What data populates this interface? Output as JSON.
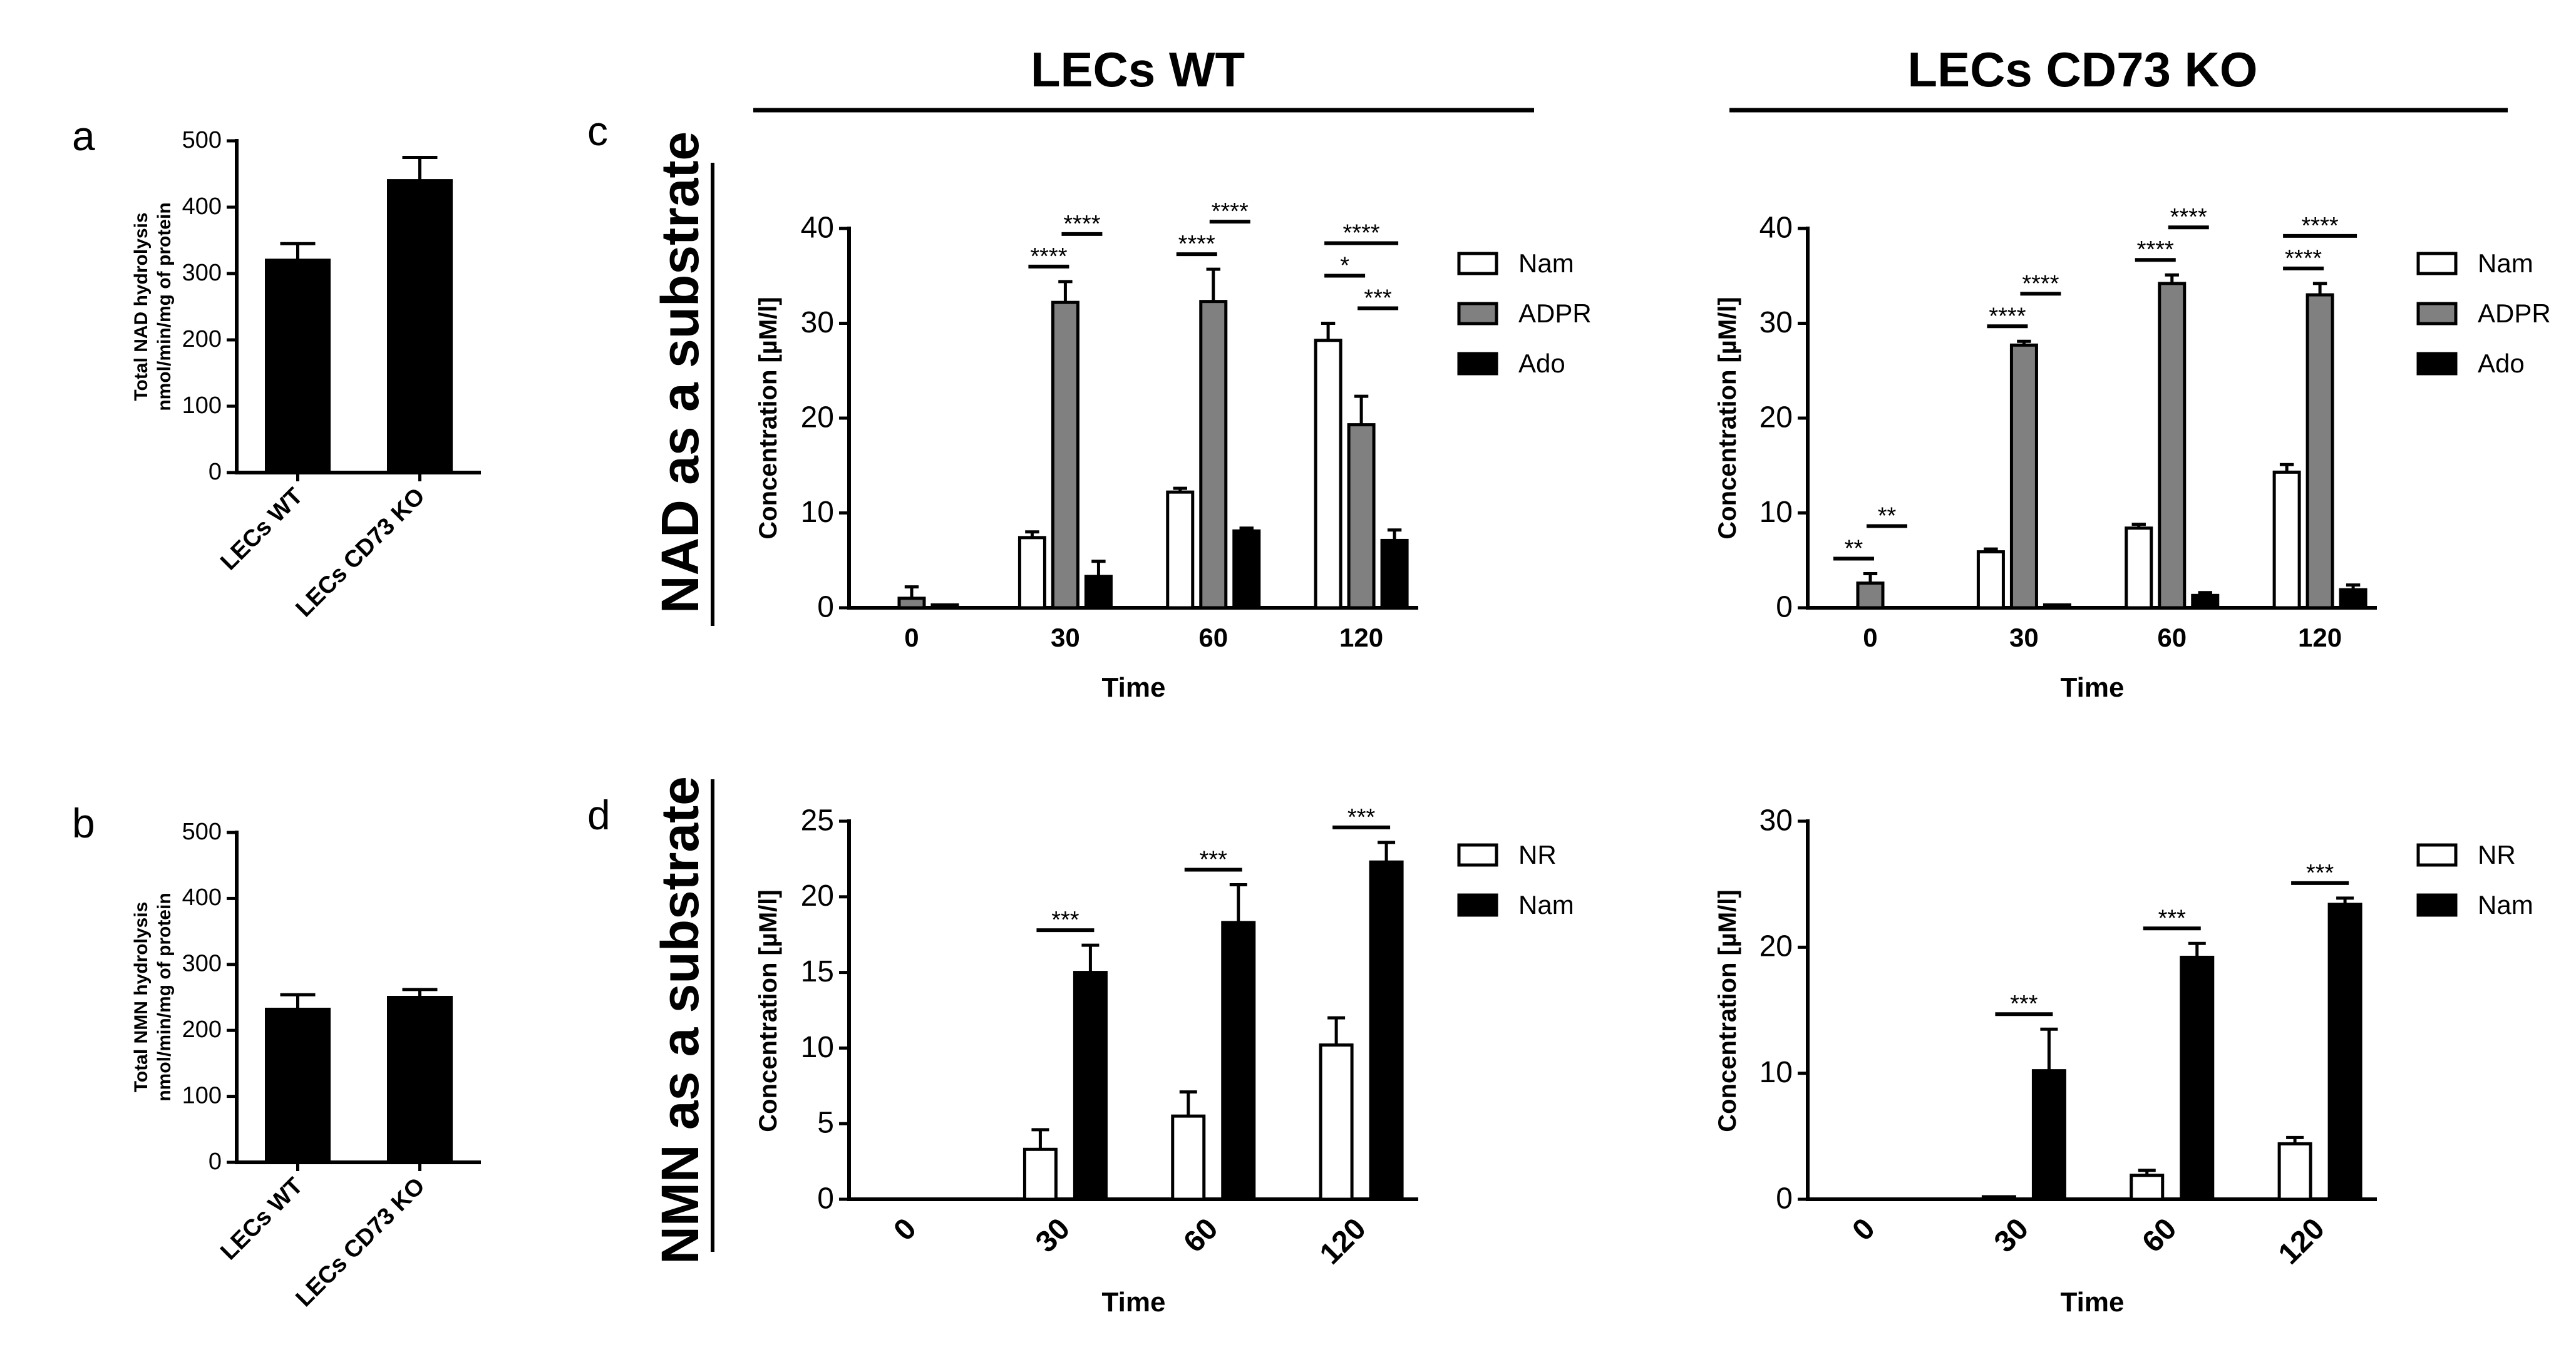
{
  "header": {
    "wt_title": "LECs WT",
    "ko_title": "LECs CD73 KO",
    "row1_label": "NAD as a substrate",
    "row2_label": "NMN as a substrate"
  },
  "colors": {
    "wt_fill": "#000000",
    "ko_fill": "#a6a6a6",
    "nam_fill": "#ffffff",
    "adpr_fill": "#808080",
    "ado_fill": "#000000",
    "nr_fill": "#ffffff",
    "nam2_fill": "#000000"
  },
  "chart_data": [
    {
      "id": "a",
      "panel_label": "a",
      "type": "bar",
      "title": "",
      "xlabel": "",
      "ylabel": [
        "Total NAD hydrolysis",
        "nmol/min/mg of protein"
      ],
      "categories": [
        "LECs WT",
        "LECs CD73 KO"
      ],
      "values": [
        320,
        440
      ],
      "errors": [
        25,
        35
      ],
      "ylim": [
        0,
        500
      ],
      "yticks": [
        0,
        100,
        200,
        300,
        400,
        500
      ],
      "rotate_xticks": true
    },
    {
      "id": "b",
      "panel_label": "b",
      "type": "bar",
      "title": "",
      "xlabel": "",
      "ylabel": [
        "Total NMN hydrolysis",
        "nmol/min/mg of protein"
      ],
      "categories": [
        "LECs WT",
        "LECs CD73 KO"
      ],
      "values": [
        232,
        250
      ],
      "errors": [
        22,
        12
      ],
      "ylim": [
        0,
        500
      ],
      "yticks": [
        0,
        100,
        200,
        300,
        400,
        500
      ],
      "rotate_xticks": true
    },
    {
      "id": "c_wt",
      "panel_label": "c",
      "type": "bar",
      "title": "LECs WT",
      "xlabel": "Time",
      "ylabel": [
        "Concentration [µM/l]"
      ],
      "categories": [
        "0",
        "30",
        "60",
        "120"
      ],
      "series": [
        {
          "name": "Nam",
          "values": [
            0,
            7.4,
            12.2,
            28.2
          ],
          "errors": [
            0,
            0.6,
            0.4,
            1.8
          ]
        },
        {
          "name": "ADPR",
          "values": [
            1.0,
            32.2,
            32.3,
            19.3
          ],
          "errors": [
            1.2,
            2.2,
            3.4,
            3.0
          ]
        },
        {
          "name": "Ado",
          "values": [
            0.3,
            3.3,
            8.1,
            7.1
          ],
          "errors": [
            0,
            1.6,
            0.3,
            1.1
          ]
        }
      ],
      "ylim": [
        0,
        40
      ],
      "yticks": [
        0,
        10,
        20,
        30,
        40
      ],
      "legend": "right",
      "significance": [
        {
          "group": 1,
          "pair": [
            0,
            1
          ],
          "label": "****",
          "level": 0
        },
        {
          "group": 1,
          "pair": [
            1,
            2
          ],
          "label": "****",
          "level": 1
        },
        {
          "group": 2,
          "pair": [
            0,
            1
          ],
          "label": "****",
          "level": 0
        },
        {
          "group": 2,
          "pair": [
            1,
            2
          ],
          "label": "****",
          "level": 1
        },
        {
          "group": 3,
          "pair": [
            0,
            1
          ],
          "label": "*",
          "level": 1
        },
        {
          "group": 3,
          "pair": [
            0,
            2
          ],
          "label": "****",
          "level": 2
        },
        {
          "group": 3,
          "pair": [
            1,
            2
          ],
          "label": "***",
          "level": 0
        }
      ]
    },
    {
      "id": "c_ko",
      "panel_label": "",
      "type": "bar",
      "title": "LECs CD73 KO",
      "xlabel": "Time",
      "ylabel": [
        "Concentration [µM/l]"
      ],
      "categories": [
        "0",
        "30",
        "60",
        "120"
      ],
      "series": [
        {
          "name": "Nam",
          "values": [
            0,
            5.9,
            8.4,
            14.3
          ],
          "errors": [
            0,
            0.3,
            0.4,
            0.8
          ]
        },
        {
          "name": "ADPR",
          "values": [
            2.6,
            27.7,
            34.2,
            33.0
          ],
          "errors": [
            1.0,
            0.4,
            0.9,
            1.2
          ]
        },
        {
          "name": "Ado",
          "values": [
            0,
            0.3,
            1.3,
            1.9
          ],
          "errors": [
            0,
            0,
            0.3,
            0.5
          ]
        }
      ],
      "ylim": [
        0,
        40
      ],
      "yticks": [
        0,
        10,
        20,
        30,
        40
      ],
      "legend": "right",
      "significance": [
        {
          "group": 0,
          "pair": [
            0,
            1
          ],
          "label": "**",
          "level": 0
        },
        {
          "group": 0,
          "pair": [
            1,
            2
          ],
          "label": "**",
          "level": 1
        },
        {
          "group": 1,
          "pair": [
            0,
            1
          ],
          "label": "****",
          "level": 0
        },
        {
          "group": 1,
          "pair": [
            1,
            2
          ],
          "label": "****",
          "level": 1
        },
        {
          "group": 2,
          "pair": [
            0,
            1
          ],
          "label": "****",
          "level": 0
        },
        {
          "group": 2,
          "pair": [
            1,
            2
          ],
          "label": "****",
          "level": 1
        },
        {
          "group": 3,
          "pair": [
            0,
            1
          ],
          "label": "****",
          "level": 0
        },
        {
          "group": 3,
          "pair": [
            0,
            2
          ],
          "label": "****",
          "level": 1
        }
      ]
    },
    {
      "id": "d_wt",
      "panel_label": "d",
      "type": "bar",
      "title": "",
      "xlabel": "Time",
      "ylabel": [
        "Concentration [µM/l]"
      ],
      "categories": [
        "0",
        "30",
        "60",
        "120"
      ],
      "series": [
        {
          "name": "NR",
          "values": [
            0,
            3.3,
            5.5,
            10.2
          ],
          "errors": [
            0,
            1.3,
            1.6,
            1.8
          ]
        },
        {
          "name": "Nam",
          "values": [
            0,
            15.0,
            18.3,
            22.3
          ],
          "errors": [
            0,
            1.8,
            2.5,
            1.3
          ]
        }
      ],
      "ylim": [
        0,
        25
      ],
      "yticks": [
        0,
        5,
        10,
        15,
        20,
        25
      ],
      "rotate_xticks": true,
      "legend": "right",
      "significance": [
        {
          "group": 1,
          "pair": [
            0,
            1
          ],
          "label": "***",
          "level": 0
        },
        {
          "group": 2,
          "pair": [
            0,
            1
          ],
          "label": "***",
          "level": 0
        },
        {
          "group": 3,
          "pair": [
            0,
            1
          ],
          "label": "***",
          "level": 0
        }
      ]
    },
    {
      "id": "d_ko",
      "panel_label": "",
      "type": "bar",
      "title": "",
      "xlabel": "Time",
      "ylabel": [
        "Concentration [µM/l]"
      ],
      "categories": [
        "0",
        "30",
        "60",
        "120"
      ],
      "series": [
        {
          "name": "NR",
          "values": [
            0,
            0.2,
            1.9,
            4.4
          ],
          "errors": [
            0,
            0,
            0.4,
            0.5
          ]
        },
        {
          "name": "Nam",
          "values": [
            0,
            10.2,
            19.2,
            23.4
          ],
          "errors": [
            0,
            3.3,
            1.1,
            0.5
          ]
        }
      ],
      "ylim": [
        0,
        30
      ],
      "yticks": [
        0,
        10,
        20,
        30
      ],
      "rotate_xticks": true,
      "legend": "right",
      "significance": [
        {
          "group": 1,
          "pair": [
            0,
            1
          ],
          "label": "***",
          "level": 0
        },
        {
          "group": 2,
          "pair": [
            0,
            1
          ],
          "label": "***",
          "level": 0
        },
        {
          "group": 3,
          "pair": [
            0,
            1
          ],
          "label": "***",
          "level": 0
        }
      ]
    }
  ]
}
